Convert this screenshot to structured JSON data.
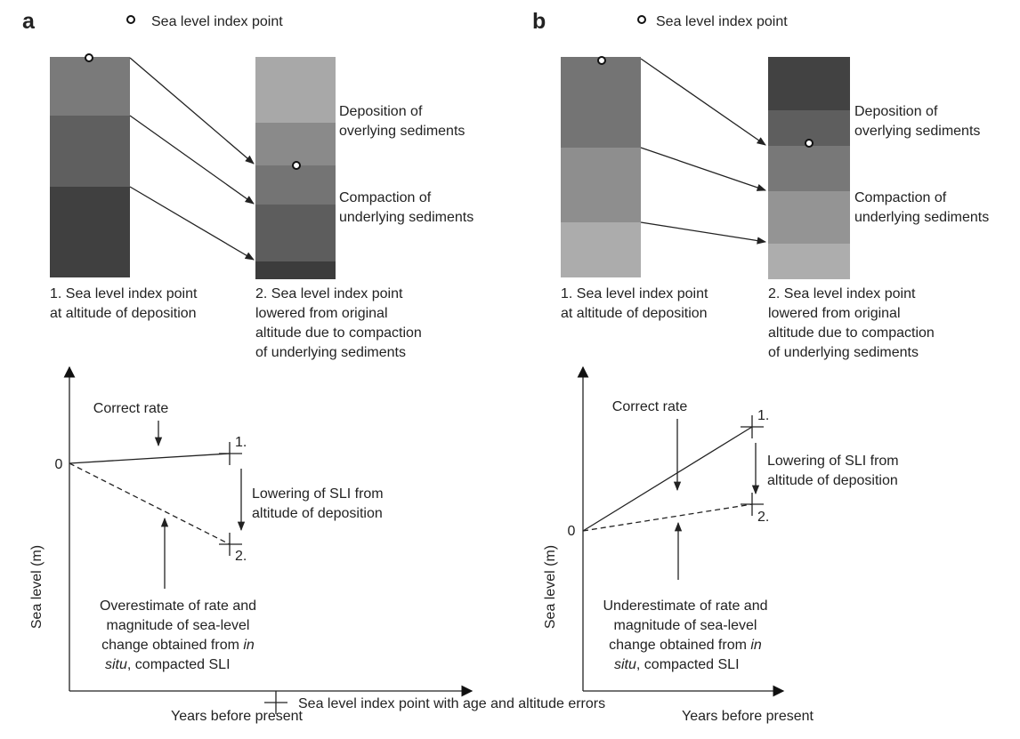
{
  "panels": [
    {
      "label": "a",
      "legend": "Sea level index point",
      "column1_caption": [
        "1. Sea level index point",
        "at altitude of deposition"
      ],
      "column2_caption": [
        "2. Sea level index point",
        "lowered from original",
        "altitude due to compaction",
        "of underlying sediments"
      ],
      "deposition": [
        "Deposition of",
        "overlying sediments"
      ],
      "compaction": [
        "Compaction of",
        "underlying sediments"
      ],
      "graph": {
        "correct_rate": "Correct rate",
        "zero": "0",
        "point1": "1.",
        "point2": "2.",
        "lowering": [
          "Lowering of SLI from",
          "altitude of deposition"
        ],
        "estimate": [
          "Overestimate of rate and",
          "magnitude of sea-level",
          "change obtained from ",
          "in",
          "situ",
          ", compacted SLI"
        ],
        "ylabel": "Sea level (m)",
        "xlabel": "Years before present"
      }
    },
    {
      "label": "b",
      "legend": "Sea level index point",
      "column1_caption": [
        "1. Sea level index point",
        "at altitude of deposition"
      ],
      "column2_caption": [
        "2. Sea level index point",
        "lowered from original",
        "altitude due to compaction",
        "of underlying sediments"
      ],
      "deposition": [
        "Deposition of",
        "overlying sediments"
      ],
      "compaction": [
        "Compaction of",
        "underlying sediments"
      ],
      "graph": {
        "correct_rate": "Correct rate",
        "zero": "0",
        "point1": "1.",
        "point2": "2.",
        "lowering": [
          "Lowering of SLI from",
          "altitude of deposition"
        ],
        "estimate": [
          "Underestimate of rate and",
          "magnitude of sea-level",
          "change obtained from ",
          "in",
          "situ",
          ", compacted SLI"
        ],
        "ylabel": "Sea level (m)",
        "xlabel": "Years before present"
      }
    }
  ],
  "footer_legend": "Sea level index point with age and altitude errors"
}
